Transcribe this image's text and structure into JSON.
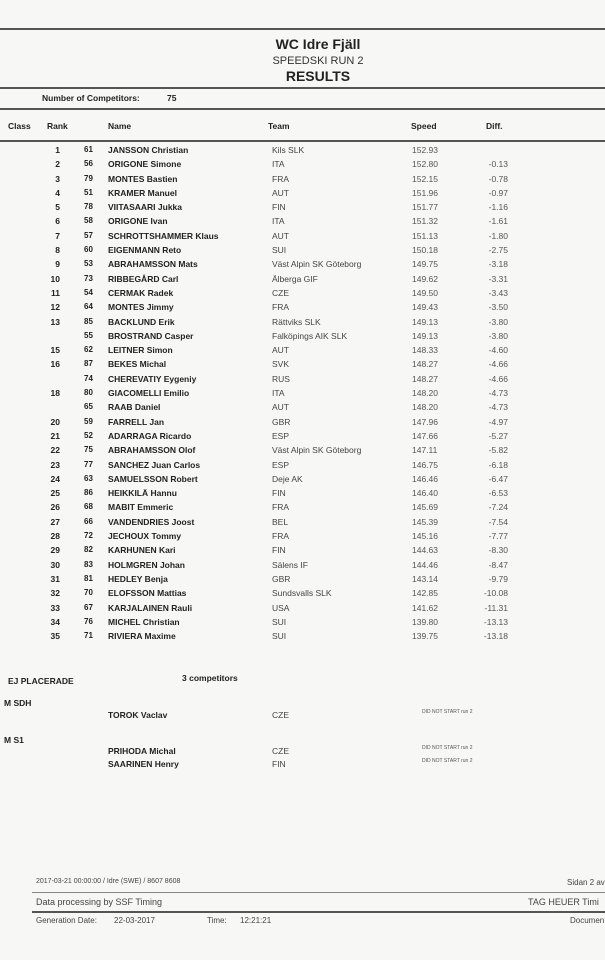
{
  "header": {
    "event": "WC Idre Fjäll",
    "run": "SPEEDSKI RUN 2",
    "title": "RESULTS",
    "competitors_label": "Number of Competitors:",
    "competitors_value": "75"
  },
  "columns": {
    "class": "Class",
    "rank": "Rank",
    "name": "Name",
    "team": "Team",
    "speed": "Speed",
    "diff": "Diff."
  },
  "results": [
    {
      "rank": "1",
      "bib": "61",
      "name": "JANSSON Christian",
      "team": "Kils SLK",
      "speed": "152.93",
      "diff": ""
    },
    {
      "rank": "2",
      "bib": "56",
      "name": "ORIGONE Simone",
      "team": "ITA",
      "speed": "152.80",
      "diff": "-0.13"
    },
    {
      "rank": "3",
      "bib": "79",
      "name": "MONTES Bastien",
      "team": "FRA",
      "speed": "152.15",
      "diff": "-0.78"
    },
    {
      "rank": "4",
      "bib": "51",
      "name": "KRAMER Manuel",
      "team": "AUT",
      "speed": "151.96",
      "diff": "-0.97"
    },
    {
      "rank": "5",
      "bib": "78",
      "name": "VIITASAARI Jukka",
      "team": "FIN",
      "speed": "151.77",
      "diff": "-1.16"
    },
    {
      "rank": "6",
      "bib": "58",
      "name": "ORIGONE Ivan",
      "team": "ITA",
      "speed": "151.32",
      "diff": "-1.61"
    },
    {
      "rank": "7",
      "bib": "57",
      "name": "SCHROTTSHAMMER Klaus",
      "team": "AUT",
      "speed": "151.13",
      "diff": "-1.80"
    },
    {
      "rank": "8",
      "bib": "60",
      "name": "EIGENMANN Reto",
      "team": "SUI",
      "speed": "150.18",
      "diff": "-2.75"
    },
    {
      "rank": "9",
      "bib": "53",
      "name": "ABRAHAMSSON Mats",
      "team": "Väst Alpin SK Göteborg",
      "speed": "149.75",
      "diff": "-3.18"
    },
    {
      "rank": "10",
      "bib": "73",
      "name": "RIBBEGÅRD Carl",
      "team": "Älberga GIF",
      "speed": "149.62",
      "diff": "-3.31"
    },
    {
      "rank": "11",
      "bib": "54",
      "name": "CERMAK Radek",
      "team": "CZE",
      "speed": "149.50",
      "diff": "-3.43"
    },
    {
      "rank": "12",
      "bib": "64",
      "name": "MONTES Jimmy",
      "team": "FRA",
      "speed": "149.43",
      "diff": "-3.50"
    },
    {
      "rank": "13",
      "bib": "85",
      "name": "BACKLUND Erik",
      "team": "Rättviks SLK",
      "speed": "149.13",
      "diff": "-3.80"
    },
    {
      "rank": "",
      "bib": "55",
      "name": "BROSTRAND Casper",
      "team": "Falköpings AIK SLK",
      "speed": "149.13",
      "diff": "-3.80"
    },
    {
      "rank": "15",
      "bib": "62",
      "name": "LEITNER Simon",
      "team": "AUT",
      "speed": "148.33",
      "diff": "-4.60"
    },
    {
      "rank": "16",
      "bib": "87",
      "name": "BEKES Michal",
      "team": "SVK",
      "speed": "148.27",
      "diff": "-4.66"
    },
    {
      "rank": "",
      "bib": "74",
      "name": "CHEREVATIY Eygeniy",
      "team": "RUS",
      "speed": "148.27",
      "diff": "-4.66"
    },
    {
      "rank": "18",
      "bib": "80",
      "name": "GIACOMELLI Emilio",
      "team": "ITA",
      "speed": "148.20",
      "diff": "-4.73"
    },
    {
      "rank": "",
      "bib": "65",
      "name": "RAAB Daniel",
      "team": "AUT",
      "speed": "148.20",
      "diff": "-4.73"
    },
    {
      "rank": "20",
      "bib": "59",
      "name": "FARRELL Jan",
      "team": "GBR",
      "speed": "147.96",
      "diff": "-4.97"
    },
    {
      "rank": "21",
      "bib": "52",
      "name": "ADARRAGA Ricardo",
      "team": "ESP",
      "speed": "147.66",
      "diff": "-5.27"
    },
    {
      "rank": "22",
      "bib": "75",
      "name": "ABRAHAMSSON Olof",
      "team": "Väst Alpin SK Göteborg",
      "speed": "147.11",
      "diff": "-5.82"
    },
    {
      "rank": "23",
      "bib": "77",
      "name": "SANCHEZ Juan Carlos",
      "team": "ESP",
      "speed": "146.75",
      "diff": "-6.18"
    },
    {
      "rank": "24",
      "bib": "63",
      "name": "SAMUELSSON Robert",
      "team": "Deje AK",
      "speed": "146.46",
      "diff": "-6.47"
    },
    {
      "rank": "25",
      "bib": "86",
      "name": "HEIKKILÄ Hannu",
      "team": "FIN",
      "speed": "146.40",
      "diff": "-6.53"
    },
    {
      "rank": "26",
      "bib": "68",
      "name": "MABIT Emmeric",
      "team": "FRA",
      "speed": "145.69",
      "diff": "-7.24"
    },
    {
      "rank": "27",
      "bib": "66",
      "name": "VANDENDRIES Joost",
      "team": "BEL",
      "speed": "145.39",
      "diff": "-7.54"
    },
    {
      "rank": "28",
      "bib": "72",
      "name": "JECHOUX Tommy",
      "team": "FRA",
      "speed": "145.16",
      "diff": "-7.77"
    },
    {
      "rank": "29",
      "bib": "82",
      "name": "KARHUNEN Kari",
      "team": "FIN",
      "speed": "144.63",
      "diff": "-8.30"
    },
    {
      "rank": "30",
      "bib": "83",
      "name": "HOLMGREN Johan",
      "team": "Sälens IF",
      "speed": "144.46",
      "diff": "-8.47"
    },
    {
      "rank": "31",
      "bib": "81",
      "name": "HEDLEY Benja",
      "team": "GBR",
      "speed": "143.14",
      "diff": "-9.79"
    },
    {
      "rank": "32",
      "bib": "70",
      "name": "ELOFSSON Mattias",
      "team": "Sundsvalls SLK",
      "speed": "142.85",
      "diff": "-10.08"
    },
    {
      "rank": "33",
      "bib": "67",
      "name": "KARJALAINEN Rauli",
      "team": "USA",
      "speed": "141.62",
      "diff": "-11.31"
    },
    {
      "rank": "34",
      "bib": "76",
      "name": "MICHEL Christian",
      "team": "SUI",
      "speed": "139.80",
      "diff": "-13.13"
    },
    {
      "rank": "35",
      "bib": "71",
      "name": "RIVIERA Maxime",
      "team": "SUI",
      "speed": "139.75",
      "diff": "-13.18"
    }
  ],
  "unplaced": {
    "label": "EJ PLACERADE",
    "count": "3 competitors",
    "groups": [
      {
        "class": "M SDH",
        "entries": [
          {
            "name": "TOROK Vaclav",
            "team": "CZE",
            "status": "DID NOT START run 2"
          }
        ]
      },
      {
        "class": "M S1",
        "entries": [
          {
            "name": "PRIHODA Michal",
            "team": "CZE",
            "status": "DID NOT START run 2"
          },
          {
            "name": "SAARINEN Henry",
            "team": "FIN",
            "status": "DID NOT START run 2"
          }
        ]
      }
    ]
  },
  "footer": {
    "info": "2017-03-21 00:00:00 / Idre (SWE) / 8607 8608",
    "page": "Sidan 2 av",
    "processing": "Data processing by SSF Timing",
    "timing": "TAG HEUER Timi",
    "gen_label": "Generation Date:",
    "gen_date": "22-03-2017",
    "time_label": "Time:",
    "time_value": "12:21:21",
    "doc_label": "Documen"
  }
}
